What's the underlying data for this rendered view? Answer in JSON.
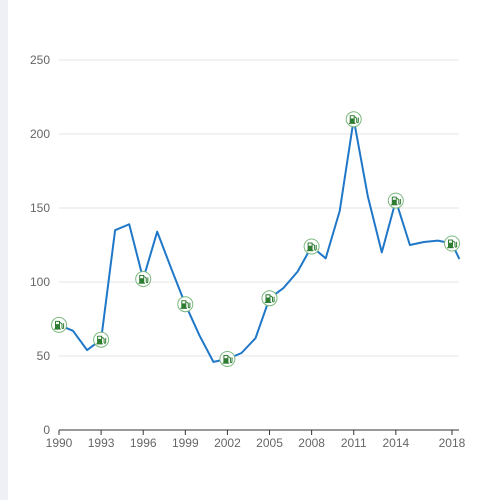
{
  "chart_data": {
    "type": "line",
    "title": "",
    "xlabel": "",
    "ylabel": "",
    "x": [
      1990,
      1991,
      1992,
      1993,
      1994,
      1995,
      1996,
      1997,
      1998,
      1999,
      2000,
      2001,
      2002,
      2003,
      2004,
      2005,
      2006,
      2007,
      2008,
      2009,
      2010,
      2011,
      2012,
      2013,
      2014,
      2015,
      2016,
      2017,
      2018,
      2018.5
    ],
    "series": [
      {
        "values": [
          71,
          67,
          54,
          61,
          135,
          139,
          102,
          134,
          109,
          85,
          64,
          46,
          48,
          52,
          62,
          89,
          96,
          107,
          124,
          116,
          148,
          210,
          158,
          120,
          155,
          125,
          127,
          128,
          126,
          116
        ],
        "color": "#1f77c8"
      }
    ],
    "marker_icon": "fuel-pump-icon",
    "marked_points": [
      {
        "x": 1990,
        "y": 71
      },
      {
        "x": 1993,
        "y": 61
      },
      {
        "x": 1996,
        "y": 102
      },
      {
        "x": 1999,
        "y": 85
      },
      {
        "x": 2002,
        "y": 48
      },
      {
        "x": 2005,
        "y": 89
      },
      {
        "x": 2008,
        "y": 124
      },
      {
        "x": 2011,
        "y": 210
      },
      {
        "x": 2014,
        "y": 155
      },
      {
        "x": 2018,
        "y": 126
      }
    ],
    "xlim": [
      1990,
      2018.5
    ],
    "ylim": [
      0,
      250
    ],
    "x_ticks": [
      1990,
      1993,
      1996,
      1999,
      2002,
      2005,
      2008,
      2011,
      2014,
      2018
    ],
    "y_ticks": [
      0,
      50,
      100,
      150,
      200,
      250
    ],
    "grid": "horizontal",
    "marker_color": "#2e7d32"
  }
}
